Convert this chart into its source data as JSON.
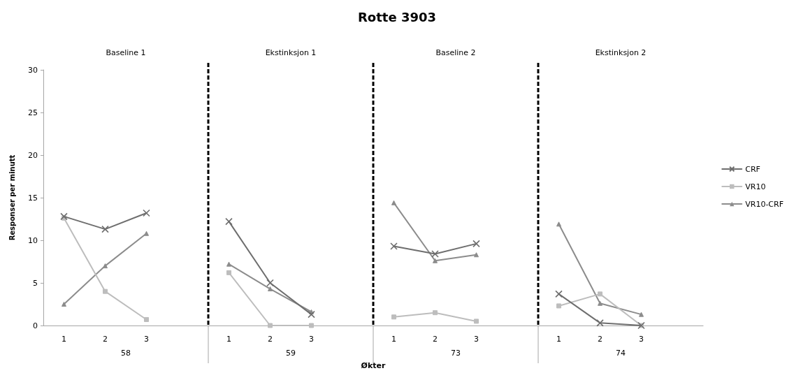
{
  "chart_data": {
    "type": "line",
    "title": "Rotte 3903",
    "xlabel": "Økter",
    "ylabel": "Responser per minutt",
    "categories": [
      "1",
      "2",
      "3",
      null,
      "1",
      "2",
      "3",
      null,
      "1",
      "2",
      "3",
      null,
      "1",
      "2",
      "3",
      null
    ],
    "series": [
      {
        "name": "CRF",
        "color": "#6e6e6e",
        "marker": "cross",
        "values": [
          12.8,
          11.3,
          13.2,
          null,
          12.2,
          5.0,
          1.3,
          null,
          9.3,
          8.4,
          9.6,
          null,
          3.7,
          0.3,
          0,
          null
        ]
      },
      {
        "name": "VR10",
        "color": "#bdbdbd",
        "marker": "square",
        "values": [
          12.6,
          4.0,
          0.7,
          null,
          6.2,
          0,
          0,
          null,
          1.0,
          1.5,
          0.5,
          null,
          2.3,
          3.7,
          0,
          null
        ]
      },
      {
        "name": "VR10-CRF",
        "color": "#8c8c8c",
        "marker": "triangle",
        "values": [
          2.5,
          7.0,
          10.8,
          null,
          7.2,
          4.3,
          1.6,
          null,
          14.4,
          7.6,
          8.3,
          null,
          11.9,
          2.6,
          1.3,
          null
        ]
      }
    ],
    "ylim": [
      0,
      30
    ],
    "yticks": [
      0,
      5,
      10,
      15,
      20,
      25,
      30
    ],
    "annotations": [
      "Baseline 1",
      "Ekstinksjon 1",
      "Baseline 2",
      "Ekstinksjon 2",
      "58",
      "59",
      "73",
      "74"
    ],
    "grid": false,
    "legend": "right",
    "line_style": "solid"
  }
}
